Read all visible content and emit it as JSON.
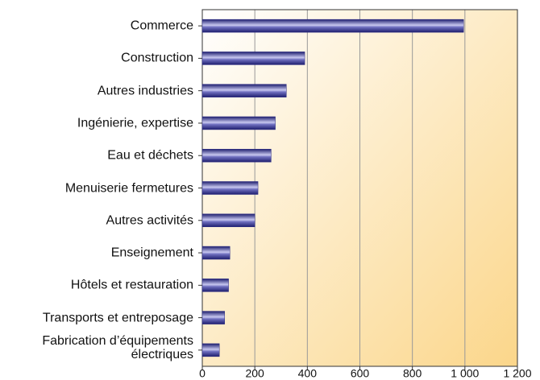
{
  "chart_data": {
    "type": "bar",
    "orientation": "horizontal",
    "categories": [
      "Commerce",
      "Construction",
      "Autres industries",
      "Ingénierie, expertise",
      "Eau et déchets",
      "Menuiserie fermetures",
      "Autres activités",
      "Enseignement",
      "Hôtels et restauration",
      "Transports et entreposage",
      "Fabrication d’équipements\nélectriques"
    ],
    "values": [
      995,
      390,
      320,
      278,
      262,
      212,
      200,
      105,
      100,
      85,
      65
    ],
    "color": "#2a2a85",
    "xlim": [
      0,
      1200
    ],
    "xticks": [
      0,
      200,
      400,
      600,
      800,
      {
        "value": 1000,
        "label": "1 000"
      },
      {
        "value": 1200,
        "label": "1 200"
      }
    ],
    "grid": true
  }
}
